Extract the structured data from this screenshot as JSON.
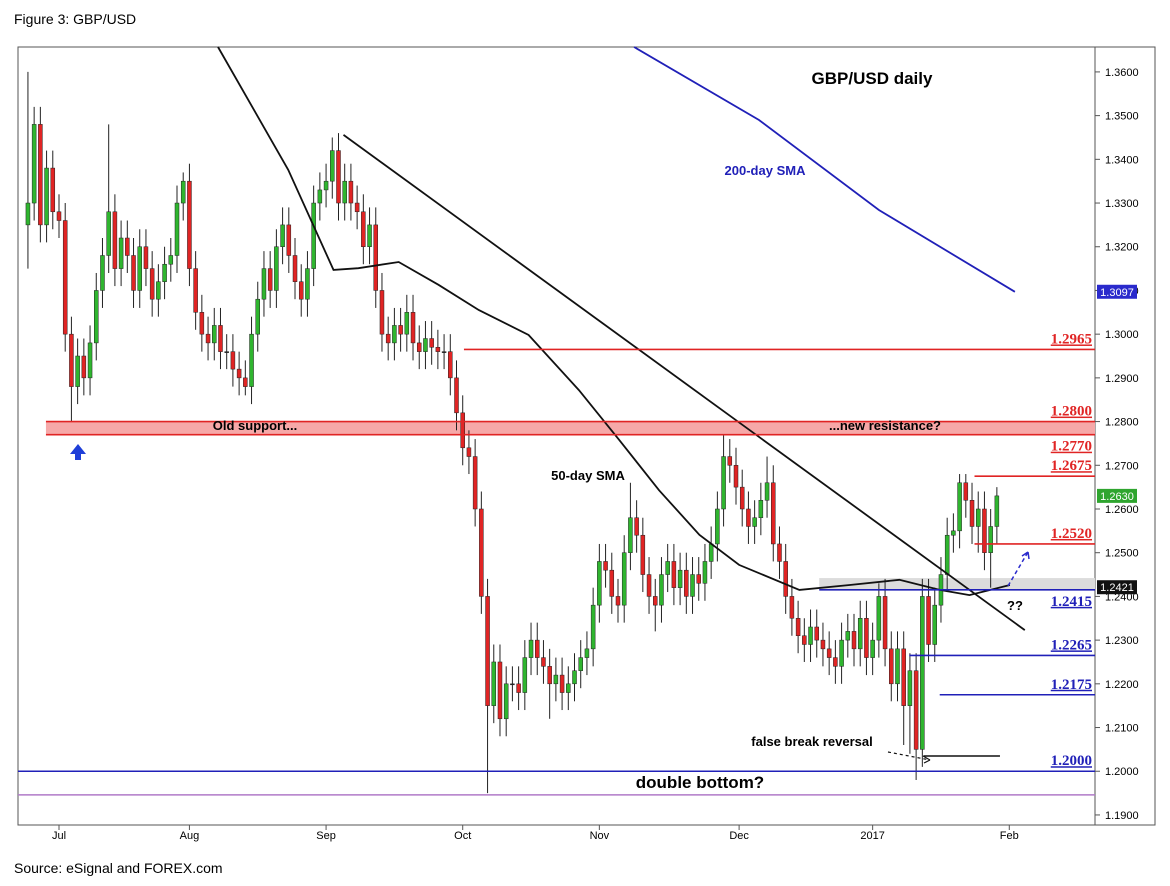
{
  "chart_data": {
    "type": "candlestick",
    "caption": "Figure 3: GBP/USD",
    "source": "Source: eSignal and FOREX.com",
    "title": "GBP/USD daily",
    "up_color": "#2fb52f",
    "down_color": "#e02424",
    "ohlc": [
      [
        1.325,
        1.36,
        1.315,
        1.33
      ],
      [
        1.33,
        1.352,
        1.326,
        1.348
      ],
      [
        1.348,
        1.352,
        1.321,
        1.325
      ],
      [
        1.325,
        1.342,
        1.321,
        1.338
      ],
      [
        1.338,
        1.342,
        1.324,
        1.328
      ],
      [
        1.328,
        1.332,
        1.322,
        1.326
      ],
      [
        1.326,
        1.33,
        1.296,
        1.3
      ],
      [
        1.3,
        1.304,
        1.28,
        1.288
      ],
      [
        1.288,
        1.299,
        1.284,
        1.295
      ],
      [
        1.295,
        1.299,
        1.286,
        1.29
      ],
      [
        1.29,
        1.302,
        1.286,
        1.298
      ],
      [
        1.298,
        1.314,
        1.294,
        1.31
      ],
      [
        1.31,
        1.322,
        1.306,
        1.318
      ],
      [
        1.318,
        1.348,
        1.314,
        1.328
      ],
      [
        1.328,
        1.332,
        1.311,
        1.315
      ],
      [
        1.315,
        1.326,
        1.311,
        1.322
      ],
      [
        1.322,
        1.326,
        1.314,
        1.318
      ],
      [
        1.318,
        1.322,
        1.306,
        1.31
      ],
      [
        1.31,
        1.324,
        1.306,
        1.32
      ],
      [
        1.32,
        1.324,
        1.311,
        1.315
      ],
      [
        1.315,
        1.319,
        1.304,
        1.308
      ],
      [
        1.308,
        1.316,
        1.304,
        1.312
      ],
      [
        1.312,
        1.32,
        1.308,
        1.316
      ],
      [
        1.316,
        1.322,
        1.312,
        1.318
      ],
      [
        1.318,
        1.334,
        1.314,
        1.33
      ],
      [
        1.33,
        1.337,
        1.326,
        1.335
      ],
      [
        1.335,
        1.339,
        1.311,
        1.315
      ],
      [
        1.315,
        1.319,
        1.301,
        1.305
      ],
      [
        1.305,
        1.309,
        1.296,
        1.3
      ],
      [
        1.3,
        1.304,
        1.294,
        1.298
      ],
      [
        1.298,
        1.306,
        1.294,
        1.302
      ],
      [
        1.302,
        1.306,
        1.292,
        1.296
      ],
      [
        1.296,
        1.3,
        1.292,
        1.296
      ],
      [
        1.296,
        1.3,
        1.288,
        1.292
      ],
      [
        1.292,
        1.296,
        1.286,
        1.29
      ],
      [
        1.29,
        1.294,
        1.286,
        1.288
      ],
      [
        1.288,
        1.304,
        1.284,
        1.3
      ],
      [
        1.3,
        1.312,
        1.296,
        1.308
      ],
      [
        1.308,
        1.319,
        1.304,
        1.315
      ],
      [
        1.315,
        1.319,
        1.306,
        1.31
      ],
      [
        1.31,
        1.324,
        1.306,
        1.32
      ],
      [
        1.32,
        1.329,
        1.316,
        1.325
      ],
      [
        1.325,
        1.329,
        1.314,
        1.318
      ],
      [
        1.318,
        1.322,
        1.308,
        1.312
      ],
      [
        1.312,
        1.316,
        1.304,
        1.308
      ],
      [
        1.308,
        1.319,
        1.304,
        1.315
      ],
      [
        1.315,
        1.334,
        1.311,
        1.33
      ],
      [
        1.33,
        1.337,
        1.326,
        1.333
      ],
      [
        1.333,
        1.339,
        1.329,
        1.335
      ],
      [
        1.335,
        1.345,
        1.331,
        1.342
      ],
      [
        1.342,
        1.346,
        1.326,
        1.33
      ],
      [
        1.33,
        1.339,
        1.326,
        1.335
      ],
      [
        1.335,
        1.339,
        1.326,
        1.33
      ],
      [
        1.33,
        1.334,
        1.324,
        1.328
      ],
      [
        1.328,
        1.332,
        1.316,
        1.32
      ],
      [
        1.32,
        1.329,
        1.316,
        1.325
      ],
      [
        1.325,
        1.329,
        1.306,
        1.31
      ],
      [
        1.31,
        1.314,
        1.296,
        1.3
      ],
      [
        1.3,
        1.304,
        1.294,
        1.298
      ],
      [
        1.298,
        1.306,
        1.294,
        1.302
      ],
      [
        1.302,
        1.306,
        1.296,
        1.3
      ],
      [
        1.3,
        1.309,
        1.296,
        1.305
      ],
      [
        1.305,
        1.309,
        1.294,
        1.298
      ],
      [
        1.298,
        1.302,
        1.292,
        1.296
      ],
      [
        1.296,
        1.303,
        1.292,
        1.299
      ],
      [
        1.299,
        1.303,
        1.293,
        1.297
      ],
      [
        1.297,
        1.301,
        1.292,
        1.296
      ],
      [
        1.296,
        1.3,
        1.292,
        1.296
      ],
      [
        1.296,
        1.3,
        1.286,
        1.29
      ],
      [
        1.29,
        1.294,
        1.278,
        1.282
      ],
      [
        1.282,
        1.286,
        1.27,
        1.274
      ],
      [
        1.274,
        1.278,
        1.268,
        1.272
      ],
      [
        1.272,
        1.276,
        1.256,
        1.26
      ],
      [
        1.26,
        1.264,
        1.236,
        1.24
      ],
      [
        1.24,
        1.244,
        1.195,
        1.215
      ],
      [
        1.215,
        1.229,
        1.211,
        1.225
      ],
      [
        1.225,
        1.229,
        1.208,
        1.212
      ],
      [
        1.212,
        1.224,
        1.208,
        1.22
      ],
      [
        1.22,
        1.224,
        1.216,
        1.22
      ],
      [
        1.22,
        1.224,
        1.214,
        1.218
      ],
      [
        1.218,
        1.23,
        1.214,
        1.226
      ],
      [
        1.226,
        1.234,
        1.222,
        1.23
      ],
      [
        1.23,
        1.234,
        1.222,
        1.226
      ],
      [
        1.226,
        1.23,
        1.22,
        1.224
      ],
      [
        1.224,
        1.228,
        1.212,
        1.22
      ],
      [
        1.22,
        1.226,
        1.216,
        1.222
      ],
      [
        1.222,
        1.226,
        1.214,
        1.218
      ],
      [
        1.218,
        1.224,
        1.214,
        1.22
      ],
      [
        1.22,
        1.227,
        1.216,
        1.223
      ],
      [
        1.223,
        1.23,
        1.219,
        1.226
      ],
      [
        1.226,
        1.232,
        1.222,
        1.228
      ],
      [
        1.228,
        1.242,
        1.224,
        1.238
      ],
      [
        1.238,
        1.252,
        1.234,
        1.248
      ],
      [
        1.248,
        1.252,
        1.242,
        1.246
      ],
      [
        1.246,
        1.25,
        1.236,
        1.24
      ],
      [
        1.24,
        1.244,
        1.234,
        1.238
      ],
      [
        1.238,
        1.254,
        1.234,
        1.25
      ],
      [
        1.25,
        1.266,
        1.246,
        1.258
      ],
      [
        1.258,
        1.262,
        1.25,
        1.254
      ],
      [
        1.254,
        1.258,
        1.241,
        1.245
      ],
      [
        1.245,
        1.249,
        1.236,
        1.24
      ],
      [
        1.24,
        1.244,
        1.232,
        1.238
      ],
      [
        1.238,
        1.249,
        1.234,
        1.245
      ],
      [
        1.245,
        1.252,
        1.241,
        1.248
      ],
      [
        1.248,
        1.252,
        1.238,
        1.242
      ],
      [
        1.242,
        1.25,
        1.238,
        1.246
      ],
      [
        1.246,
        1.25,
        1.236,
        1.24
      ],
      [
        1.24,
        1.249,
        1.236,
        1.245
      ],
      [
        1.245,
        1.249,
        1.239,
        1.243
      ],
      [
        1.243,
        1.252,
        1.239,
        1.248
      ],
      [
        1.248,
        1.256,
        1.244,
        1.252
      ],
      [
        1.252,
        1.264,
        1.248,
        1.26
      ],
      [
        1.26,
        1.277,
        1.256,
        1.272
      ],
      [
        1.272,
        1.276,
        1.266,
        1.27
      ],
      [
        1.27,
        1.274,
        1.261,
        1.265
      ],
      [
        1.265,
        1.269,
        1.256,
        1.26
      ],
      [
        1.26,
        1.264,
        1.252,
        1.256
      ],
      [
        1.256,
        1.262,
        1.252,
        1.258
      ],
      [
        1.258,
        1.266,
        1.254,
        1.262
      ],
      [
        1.262,
        1.272,
        1.258,
        1.266
      ],
      [
        1.266,
        1.27,
        1.248,
        1.252
      ],
      [
        1.252,
        1.256,
        1.244,
        1.248
      ],
      [
        1.248,
        1.252,
        1.236,
        1.24
      ],
      [
        1.24,
        1.244,
        1.231,
        1.235
      ],
      [
        1.235,
        1.239,
        1.227,
        1.231
      ],
      [
        1.231,
        1.235,
        1.225,
        1.229
      ],
      [
        1.229,
        1.237,
        1.225,
        1.233
      ],
      [
        1.233,
        1.237,
        1.226,
        1.23
      ],
      [
        1.23,
        1.234,
        1.224,
        1.228
      ],
      [
        1.228,
        1.232,
        1.222,
        1.226
      ],
      [
        1.226,
        1.23,
        1.22,
        1.224
      ],
      [
        1.224,
        1.234,
        1.22,
        1.23
      ],
      [
        1.23,
        1.236,
        1.226,
        1.232
      ],
      [
        1.232,
        1.236,
        1.224,
        1.228
      ],
      [
        1.228,
        1.239,
        1.224,
        1.235
      ],
      [
        1.235,
        1.239,
        1.222,
        1.226
      ],
      [
        1.226,
        1.234,
        1.222,
        1.23
      ],
      [
        1.23,
        1.243,
        1.226,
        1.24
      ],
      [
        1.24,
        1.244,
        1.224,
        1.228
      ],
      [
        1.228,
        1.232,
        1.216,
        1.22
      ],
      [
        1.22,
        1.232,
        1.216,
        1.228
      ],
      [
        1.228,
        1.232,
        1.206,
        1.215
      ],
      [
        1.215,
        1.227,
        1.204,
        1.223
      ],
      [
        1.223,
        1.227,
        1.198,
        1.205
      ],
      [
        1.205,
        1.244,
        1.201,
        1.24
      ],
      [
        1.24,
        1.244,
        1.225,
        1.229
      ],
      [
        1.229,
        1.242,
        1.225,
        1.238
      ],
      [
        1.238,
        1.249,
        1.234,
        1.245
      ],
      [
        1.245,
        1.258,
        1.241,
        1.254
      ],
      [
        1.254,
        1.259,
        1.25,
        1.255
      ],
      [
        1.255,
        1.268,
        1.251,
        1.266
      ],
      [
        1.266,
        1.268,
        1.258,
        1.262
      ],
      [
        1.262,
        1.266,
        1.252,
        1.256
      ],
      [
        1.256,
        1.264,
        1.25,
        1.26
      ],
      [
        1.26,
        1.264,
        1.246,
        1.25
      ],
      [
        1.25,
        1.26,
        1.242,
        1.256
      ],
      [
        1.256,
        1.265,
        1.252,
        1.263
      ]
    ],
    "xlim": [
      -1.6,
      171.8
    ],
    "xticks": [
      {
        "value": 5,
        "label": "Jul"
      },
      {
        "value": 26,
        "label": "Aug"
      },
      {
        "value": 48,
        "label": "Sep"
      },
      {
        "value": 70,
        "label": "Oct"
      },
      {
        "value": 92,
        "label": "Nov"
      },
      {
        "value": 114.5,
        "label": "Dec"
      },
      {
        "value": 136,
        "label": "2017"
      },
      {
        "value": 158,
        "label": "Feb"
      }
    ],
    "ylim": [
      1.1877,
      1.3657
    ],
    "yticks": [
      {
        "value": 1.19,
        "label": "1.1900"
      },
      {
        "value": 1.2,
        "label": "1.2000"
      },
      {
        "value": 1.21,
        "label": "1.2100"
      },
      {
        "value": 1.22,
        "label": "1.2200"
      },
      {
        "value": 1.23,
        "label": "1.2300"
      },
      {
        "value": 1.24,
        "label": "1.2400"
      },
      {
        "value": 1.25,
        "label": "1.2500"
      },
      {
        "value": 1.26,
        "label": "1.2600"
      },
      {
        "value": 1.27,
        "label": "1.2700"
      },
      {
        "value": 1.28,
        "label": "1.2800"
      },
      {
        "value": 1.29,
        "label": "1.2900"
      },
      {
        "value": 1.3,
        "label": "1.3000"
      },
      {
        "value": 1.31,
        "label": "1.3100"
      },
      {
        "value": 1.32,
        "label": "1.3200"
      },
      {
        "value": 1.33,
        "label": "1.3300"
      },
      {
        "value": 1.34,
        "label": "1.3400"
      },
      {
        "value": 1.35,
        "label": "1.3500"
      },
      {
        "value": 1.36,
        "label": "1.3600"
      }
    ],
    "lines": [
      {
        "name": "200-day SMA",
        "color": "#2020b8",
        "x": [
          97.6,
          117.7,
          137,
          158.9
        ],
        "values": [
          1.3657,
          1.349,
          1.3284,
          1.3097
        ]
      },
      {
        "name": "50-day SMA",
        "color": "#111111",
        "x": [
          30.6,
          41.9,
          49.2,
          53.2,
          59.7,
          66.1,
          72.6,
          80.6,
          88.7,
          95.2,
          101.6,
          108.1,
          114.5,
          124.2,
          132.3,
          140.3,
          146.8,
          151.6,
          158.1
        ],
        "values": [
          1.3657,
          1.3376,
          1.3147,
          1.3151,
          1.3165,
          1.3113,
          1.3055,
          1.2998,
          1.2872,
          1.2758,
          1.2643,
          1.2541,
          1.2472,
          1.2415,
          1.2426,
          1.2438,
          1.2415,
          1.2403,
          1.2426
        ]
      },
      {
        "color": "#111111",
        "x": [
          50.8,
          160.5
        ],
        "values": [
          1.3456,
          1.2323
        ]
      }
    ],
    "zones": [
      {
        "range": [
          1.277,
          1.28
        ],
        "x0": 2.9,
        "color": "#f6a8a8"
      },
      {
        "range": [
          1.2415,
          1.2442
        ],
        "x0": 127.4,
        "color": "#dcdcdc"
      }
    ],
    "levels": [
      {
        "value": 1.2965,
        "label": "1.2965",
        "color": "#e02424",
        "x0": 70.2
      },
      {
        "value": 1.28,
        "label": "1.2800",
        "color": "#e02424",
        "x0": 2.9
      },
      {
        "value": 1.277,
        "label": "1.2770",
        "color": "#e02424",
        "x0": 2.9,
        "label_pos": "below"
      },
      {
        "value": 1.2675,
        "label": "1.2675",
        "color": "#e02424",
        "x0": 152.4
      },
      {
        "value": 1.252,
        "label": "1.2520",
        "color": "#e02424",
        "x0": 152.4
      },
      {
        "value": 1.2415,
        "label": "1.2415",
        "color": "#2020b8",
        "x0": 127.4,
        "label_pos": "below"
      },
      {
        "value": 1.2265,
        "label": "1.2265",
        "color": "#2020b8",
        "x0": 141.9
      },
      {
        "value": 1.2175,
        "label": "1.2175",
        "color": "#2020b8",
        "x0": 146.8
      },
      {
        "value": 1.2,
        "label": "1.2000",
        "color": "#2020b8",
        "x0": -1.6
      }
    ],
    "segments": [
      {
        "value": 1.1946,
        "x0": -1.6,
        "x1": 171.8,
        "color": "#b07ac8"
      },
      {
        "value": 1.2035,
        "x0": 144.2,
        "x1": 156.5,
        "color": "#111111"
      }
    ],
    "badges": [
      {
        "value": 1.3097,
        "label": "1.3097",
        "color": "#2a2acc"
      },
      {
        "value": 1.263,
        "label": "1.2630",
        "color": "#2fa52f"
      },
      {
        "value": 1.2421,
        "label": "1.2421",
        "color": "#111111"
      }
    ],
    "annotations": [
      "200-day SMA",
      "50-day SMA",
      "Old support...",
      "...new resistance?",
      "false break reversal",
      "double bottom?",
      "??"
    ]
  }
}
